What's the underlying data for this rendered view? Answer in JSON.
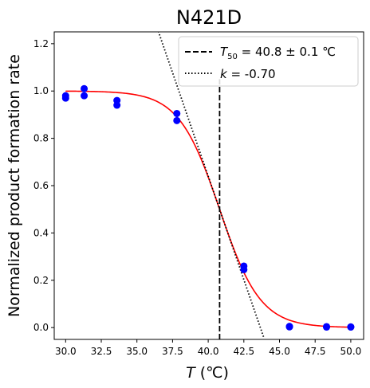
{
  "chart_data": {
    "type": "scatter",
    "title": "N421D",
    "xlabel_symbol": "T",
    "xlabel_unit": " (℃)",
    "ylabel": "Normalized product formation rate",
    "xlim": [
      29.2,
      50.9
    ],
    "ylim": [
      -0.05,
      1.25
    ],
    "xticks": [
      30.0,
      32.5,
      35.0,
      37.5,
      40.0,
      42.5,
      45.0,
      47.5,
      50.0
    ],
    "xtick_labels": [
      "30.0",
      "32.5",
      "35.0",
      "37.5",
      "40.0",
      "42.5",
      "45.0",
      "47.5",
      "50.0"
    ],
    "yticks": [
      0.0,
      0.2,
      0.4,
      0.6,
      0.8,
      1.0,
      1.2
    ],
    "ytick_labels": [
      "0.0",
      "0.2",
      "0.4",
      "0.6",
      "0.8",
      "1.0",
      "1.2"
    ],
    "grid": false,
    "legend_position": "top-right",
    "points": {
      "color": "#0000ff",
      "x": [
        30.0,
        30.0,
        31.3,
        31.3,
        33.6,
        33.6,
        37.8,
        37.8,
        42.5,
        42.5,
        45.7,
        45.7,
        48.3,
        48.3,
        50.0,
        50.0
      ],
      "y": [
        0.98,
        0.97,
        1.01,
        0.98,
        0.96,
        0.94,
        0.905,
        0.875,
        0.26,
        0.245,
        0.005,
        0.003,
        0.004,
        0.002,
        0.003,
        0.002
      ]
    },
    "fit": {
      "color": "#ff0000",
      "T50": 40.8,
      "k": -0.7
    },
    "t50_line": {
      "x": 40.8,
      "y_range": [
        -0.05,
        1.05
      ],
      "color": "#000000",
      "style": "dashed"
    },
    "tangent_line": {
      "color": "#000000",
      "style": "dotted",
      "x_range": [
        36.5,
        43.9
      ],
      "slope": -0.175,
      "intercept_at_T50": 0.5
    },
    "legend": [
      {
        "style": "dashed",
        "sub": "50",
        "text": " = 40.8 ± 0.1 ℃"
      },
      {
        "style": "dotted",
        "symbol": "k",
        "text": " = -0.70"
      }
    ]
  }
}
